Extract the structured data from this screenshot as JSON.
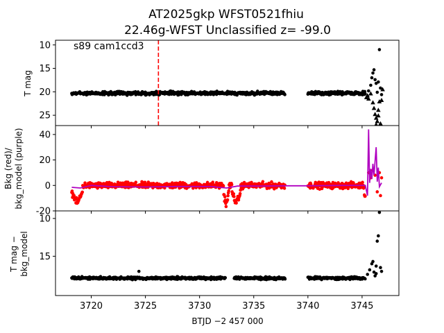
{
  "figure": {
    "title_line1": "AT2025gkp  WFST0521fhiu",
    "title_line2": "22.46g-WFST Unclassified z= -99.0",
    "xlabel": "BTJD −2 457 000"
  },
  "chart_data": [
    {
      "type": "scatter",
      "panel": "top",
      "ylabel": "T mag",
      "annotation": "s89 cam1ccd3",
      "xlim": [
        3716.7,
        3748.4
      ],
      "ylim": [
        27.2,
        9.0
      ],
      "inverted_y": true,
      "yticks": [
        10,
        15,
        20,
        25
      ],
      "vline_x": 3726.2,
      "vline_color": "#ff0000",
      "series": [
        {
          "marker": "circle",
          "color": "#000000",
          "segments": [
            {
              "x0": 3718.2,
              "x1": 3737.9,
              "y_center": 20.3,
              "y_spread": 0.5
            },
            {
              "x0": 3740.0,
              "x1": 3745.3,
              "y_center": 20.3,
              "y_spread": 0.5
            }
          ],
          "points": [
            [
              3745.6,
              19.8
            ],
            [
              3745.8,
              18.6
            ],
            [
              3745.9,
              17.0
            ],
            [
              3746.0,
              16.0
            ],
            [
              3746.1,
              15.3
            ],
            [
              3746.2,
              17.4
            ],
            [
              3746.3,
              18.2
            ],
            [
              3746.4,
              20.1
            ],
            [
              3746.5,
              17.9
            ],
            [
              3746.6,
              11.0
            ],
            [
              3746.7,
              19.2
            ],
            [
              3746.8,
              20.6
            ]
          ]
        },
        {
          "marker": "triangle",
          "color": "#000000",
          "points": [
            [
              3745.4,
              21.2
            ],
            [
              3745.5,
              20.8
            ],
            [
              3745.6,
              21.5
            ],
            [
              3745.8,
              20.4
            ],
            [
              3746.0,
              22.3
            ],
            [
              3746.1,
              23.5
            ],
            [
              3746.2,
              24.8
            ],
            [
              3746.3,
              25.6
            ],
            [
              3746.4,
              26.3
            ],
            [
              3746.5,
              23.9
            ],
            [
              3746.6,
              22.1
            ],
            [
              3746.7,
              26.8
            ],
            [
              3746.8,
              21.8
            ],
            [
              3746.9,
              19.5
            ],
            [
              3746.3,
              27.0
            ],
            [
              3746.5,
              25.1
            ]
          ]
        }
      ]
    },
    {
      "type": "line",
      "panel": "middle",
      "ylabel_line1": "Bkg (red)/",
      "ylabel_line2": "bkg_model (purple)",
      "xlim": [
        3716.7,
        3748.4
      ],
      "ylim": [
        -20,
        47
      ],
      "yticks": [
        -20,
        0,
        20,
        40
      ],
      "series": [
        {
          "name": "Bkg",
          "color": "#ff0000",
          "marker": "circle",
          "segments": [
            {
              "x0": 3718.2,
              "x1": 3737.9,
              "y_center": 0.0,
              "y_spread": 3.5
            },
            {
              "x0": 3740.0,
              "x1": 3745.3,
              "y_center": 0.0,
              "y_spread": 3.5
            }
          ],
          "dips": [
            [
              3718.2,
              3719.2,
              -14
            ],
            [
              3732.2,
              3732.7,
              -15
            ],
            [
              3733.0,
              3733.8,
              -14
            ],
            [
              3745.2,
              3745.7,
              -16
            ]
          ],
          "points": [
            [
              3745.6,
              10
            ],
            [
              3745.8,
              6
            ],
            [
              3746.0,
              12
            ],
            [
              3746.2,
              8
            ],
            [
              3746.4,
              -5
            ],
            [
              3746.6,
              10
            ],
            [
              3746.8,
              6
            ],
            [
              3746.7,
              -8
            ]
          ]
        },
        {
          "name": "bkg_model",
          "color": "#b000c0",
          "points": [
            [
              3718.2,
              -1.5
            ],
            [
              3719.0,
              -2
            ],
            [
              3720,
              0
            ],
            [
              3722,
              -1
            ],
            [
              3725,
              -1.2
            ],
            [
              3728,
              -0.8
            ],
            [
              3731,
              -0.8
            ],
            [
              3732.5,
              -2
            ],
            [
              3733.5,
              -0.5
            ],
            [
              3736,
              -0.5
            ],
            [
              3738,
              -0.3
            ],
            [
              3740,
              -0.3
            ],
            [
              3743,
              0
            ],
            [
              3745.3,
              0
            ],
            [
              3745.5,
              -8
            ],
            [
              3745.6,
              44
            ],
            [
              3745.7,
              2
            ],
            [
              3745.8,
              13
            ],
            [
              3745.9,
              5
            ],
            [
              3746.0,
              17
            ],
            [
              3746.1,
              8
            ],
            [
              3746.3,
              30
            ],
            [
              3746.4,
              3
            ],
            [
              3746.5,
              14
            ],
            [
              3746.6,
              -1
            ],
            [
              3746.8,
              2
            ]
          ]
        }
      ]
    },
    {
      "type": "scatter",
      "panel": "bottom",
      "ylabel_line1": "T mag −",
      "ylabel_line2": "bkg_model",
      "xlim": [
        3716.7,
        3748.4
      ],
      "ylim": [
        20.2,
        9.0
      ],
      "inverted_y": true,
      "yticks": [
        10,
        15
      ],
      "xticks": [
        3720,
        3725,
        3730,
        3735,
        3740,
        3745
      ],
      "series": [
        {
          "marker": "circle",
          "color": "#000000",
          "segments": [
            {
              "x0": 3718.2,
              "x1": 3732.4,
              "y_center": 17.9,
              "y_spread": 0.25
            },
            {
              "x0": 3733.2,
              "x1": 3737.9,
              "y_center": 17.9,
              "y_spread": 0.25
            },
            {
              "x0": 3740.0,
              "x1": 3745.3,
              "y_center": 17.9,
              "y_spread": 0.25
            }
          ],
          "points": [
            [
              3724.4,
              17.0
            ],
            [
              3745.5,
              17.4
            ],
            [
              3745.7,
              16.8
            ],
            [
              3745.9,
              16.0
            ],
            [
              3746.0,
              15.7
            ],
            [
              3746.1,
              17.1
            ],
            [
              3746.2,
              17.6
            ],
            [
              3746.3,
              16.3
            ],
            [
              3746.4,
              13.0
            ],
            [
              3746.5,
              12.3
            ],
            [
              3746.6,
              9.2
            ],
            [
              3746.7,
              16.5
            ],
            [
              3746.8,
              17.0
            ],
            [
              3746.3,
              17.3
            ]
          ]
        }
      ]
    }
  ]
}
